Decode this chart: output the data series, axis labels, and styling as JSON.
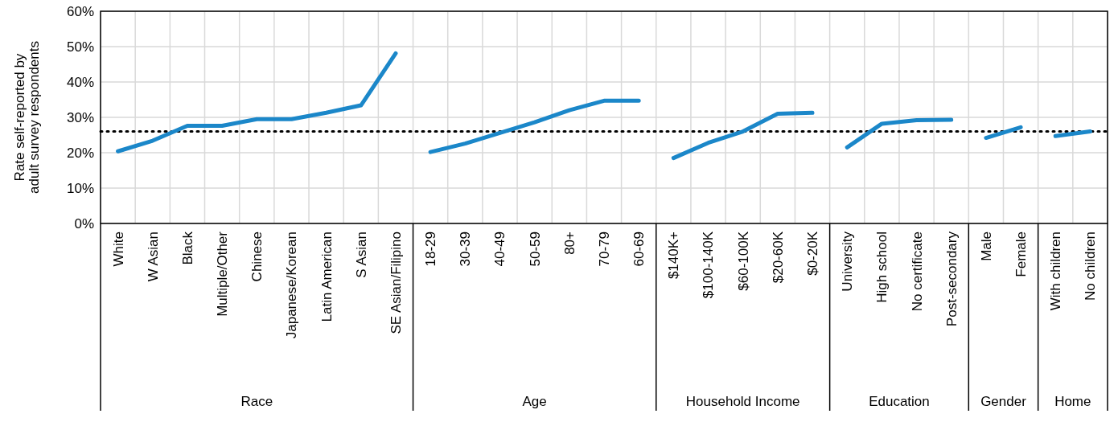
{
  "chart_data": {
    "type": "line",
    "ylabel": "Rate self-reported by\nadult survey respondents",
    "categories": [
      "White",
      "W Asian",
      "Black",
      "Multiple/Other",
      "Chinese",
      "Japanese/Korean",
      "Latin American",
      "S Asian",
      "SE Asian/Filipino",
      "18-29",
      "30-39",
      "40-49",
      "50-59",
      "80+",
      "70-79",
      "60-69",
      "$140K+",
      "$100-140K",
      "$60-100K",
      "$20-60K",
      "$0-20K",
      "University",
      "High school",
      "No certificate",
      "Post-secondary",
      "Male",
      "Female",
      "With children",
      "No children"
    ],
    "series": [
      {
        "color": "#1b87c9",
        "values": [
          20.4,
          23.4,
          27.6,
          27.6,
          29.5,
          29.5,
          31.3,
          33.4,
          48.1,
          null,
          null,
          null,
          null,
          null,
          null,
          null,
          null,
          null,
          null,
          null,
          null,
          null,
          null,
          null,
          null,
          null,
          null,
          null,
          null
        ]
      },
      {
        "color": "#1b87c9",
        "values": [
          null,
          null,
          null,
          null,
          null,
          null,
          null,
          null,
          null,
          20.2,
          22.6,
          25.6,
          28.6,
          32,
          34.7,
          34.7,
          null,
          null,
          null,
          null,
          null,
          null,
          null,
          null,
          null,
          null,
          null,
          null,
          null
        ]
      },
      {
        "color": "#1b87c9",
        "values": [
          null,
          null,
          null,
          null,
          null,
          null,
          null,
          null,
          null,
          null,
          null,
          null,
          null,
          null,
          null,
          null,
          18.5,
          22.8,
          26,
          31,
          31.3,
          null,
          null,
          null,
          null,
          null,
          null,
          null,
          null
        ]
      },
      {
        "color": "#1b87c9",
        "values": [
          null,
          null,
          null,
          null,
          null,
          null,
          null,
          null,
          null,
          null,
          null,
          null,
          null,
          null,
          null,
          null,
          null,
          null,
          null,
          null,
          null,
          21.5,
          28.2,
          29.2,
          29.3,
          null,
          null,
          null,
          null
        ]
      },
      {
        "color": "#1b87c9",
        "values": [
          null,
          null,
          null,
          null,
          null,
          null,
          null,
          null,
          null,
          null,
          null,
          null,
          null,
          null,
          null,
          null,
          null,
          null,
          null,
          null,
          null,
          null,
          null,
          null,
          null,
          24.2,
          27.2,
          null,
          null
        ]
      },
      {
        "color": "#1b87c9",
        "values": [
          null,
          null,
          null,
          null,
          null,
          null,
          null,
          null,
          null,
          null,
          null,
          null,
          null,
          null,
          null,
          null,
          null,
          null,
          null,
          null,
          null,
          null,
          null,
          null,
          null,
          null,
          null,
          24.7,
          26
        ]
      }
    ],
    "annotations": [
      "Race",
      "Age",
      "Household Income",
      "Education",
      "Gender",
      "Home"
    ],
    "ylim": [
      0,
      60
    ],
    "yticks": [
      {
        "value": 0,
        "label": "0%"
      },
      {
        "value": 10,
        "label": "10%"
      },
      {
        "value": 20,
        "label": "20%"
      },
      {
        "value": 30,
        "label": "30%"
      },
      {
        "value": 40,
        "label": "40%"
      },
      {
        "value": 50,
        "label": "50%"
      },
      {
        "value": 60,
        "label": "60%"
      }
    ],
    "ref_lines": [
      {
        "axis": "y",
        "value": 26,
        "color": "#000000",
        "line_style": "dotted"
      }
    ],
    "grid": true,
    "marker": "none",
    "line_style": "solid"
  }
}
